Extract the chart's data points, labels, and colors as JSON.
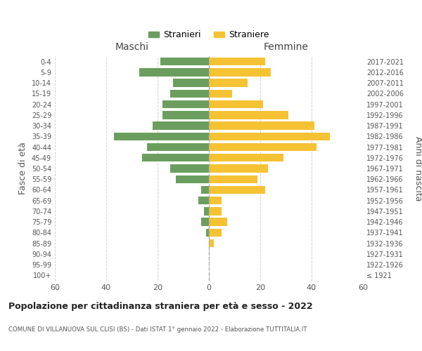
{
  "age_groups": [
    "100+",
    "95-99",
    "90-94",
    "85-89",
    "80-84",
    "75-79",
    "70-74",
    "65-69",
    "60-64",
    "55-59",
    "50-54",
    "45-49",
    "40-44",
    "35-39",
    "30-34",
    "25-29",
    "20-24",
    "15-19",
    "10-14",
    "5-9",
    "0-4"
  ],
  "birth_years": [
    "≤ 1921",
    "1922-1926",
    "1927-1931",
    "1932-1936",
    "1937-1941",
    "1942-1946",
    "1947-1951",
    "1952-1956",
    "1957-1961",
    "1962-1966",
    "1967-1971",
    "1972-1976",
    "1977-1981",
    "1982-1986",
    "1987-1991",
    "1992-1996",
    "1997-2001",
    "2002-2006",
    "2007-2011",
    "2012-2016",
    "2017-2021"
  ],
  "maschi": [
    0,
    0,
    0,
    0,
    1,
    3,
    2,
    4,
    3,
    13,
    15,
    26,
    24,
    37,
    22,
    18,
    18,
    15,
    14,
    27,
    19
  ],
  "femmine": [
    0,
    0,
    0,
    2,
    5,
    7,
    5,
    5,
    22,
    19,
    23,
    29,
    42,
    47,
    41,
    31,
    21,
    9,
    15,
    24,
    22
  ],
  "color_maschi": "#6b9e5e",
  "color_femmine": "#f5c234",
  "title": "Popolazione per cittadinanza straniera per età e sesso - 2022",
  "subtitle": "COMUNE DI VILLANUOVA SUL CLISI (BS) - Dati ISTAT 1° gennaio 2022 - Elaborazione TUTTITALIA.IT",
  "xlabel_left": "Maschi",
  "xlabel_right": "Femmine",
  "ylabel_left": "Fasce di età",
  "ylabel_right": "Anni di nascita",
  "legend_maschi": "Stranieri",
  "legend_femmine": "Straniere",
  "xlim": 60,
  "background_color": "#ffffff",
  "grid_color": "#cccccc"
}
